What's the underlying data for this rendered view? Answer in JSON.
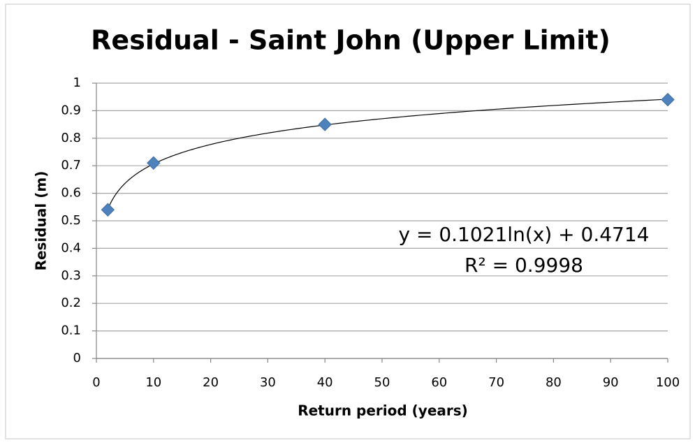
{
  "chart_data": {
    "type": "scatter",
    "title": "Residual - Saint John (Upper Limit)",
    "x_label": "Return period (years)",
    "y_label": "Residual (m)",
    "series": [
      {
        "name": "Residual",
        "color": "#4f81bd",
        "x": [
          2,
          10,
          40,
          100
        ],
        "values": [
          0.54,
          0.71,
          0.85,
          0.94
        ]
      }
    ],
    "trendline": {
      "type": "log",
      "a": 0.1021,
      "b": 0.4714,
      "equation": "y = 0.1021ln(x) + 0.4714",
      "r2": "R² = 0.9998"
    },
    "xlim": [
      0,
      100
    ],
    "xticks": [
      0,
      10,
      20,
      30,
      40,
      50,
      60,
      70,
      80,
      90,
      100
    ],
    "ylim": [
      0,
      1
    ],
    "yticks": [
      0,
      0.1,
      0.2,
      0.3,
      0.4,
      0.5,
      0.6,
      0.7,
      0.8,
      0.9,
      1
    ],
    "grid": true
  }
}
